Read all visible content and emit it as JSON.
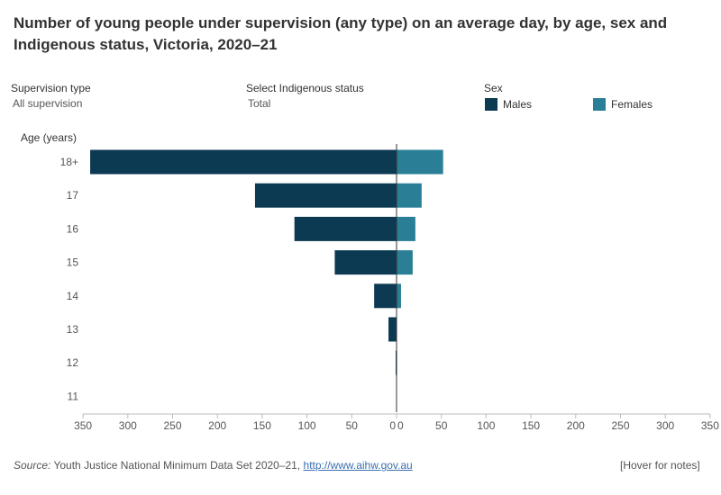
{
  "title": "Number of young people under supervision (any type) on an average day, by age, sex and Indigenous status, Victoria, 2020–21",
  "filters": {
    "supervision_type": {
      "label": "Supervision type",
      "value": "All supervision"
    },
    "indigenous_status": {
      "label": "Select Indigenous status",
      "value": "Total"
    }
  },
  "legend": {
    "title": "Sex",
    "males": {
      "label": "Males",
      "color": "#0c3a52"
    },
    "females": {
      "label": "Females",
      "color": "#2a7f97"
    }
  },
  "footer": {
    "source_label": "Source:",
    "source_text": " Youth Justice National Minimum Data Set 2020–21, ",
    "source_link": "http://www.aihw.gov.au",
    "hover_notes": "[Hover for notes]"
  },
  "chart_data": {
    "type": "bar",
    "orientation": "horizontal-population-pyramid",
    "title": "Number of young people under supervision (any type) on an average day, by age, sex and Indigenous status, Victoria, 2020–21",
    "ylabel": "Age (years)",
    "categories": [
      "18+",
      "17",
      "16",
      "15",
      "14",
      "13",
      "12",
      "11"
    ],
    "series": [
      {
        "name": "Males",
        "values": [
          342,
          158,
          114,
          69,
          25,
          9,
          1,
          0
        ]
      },
      {
        "name": "Females",
        "values": [
          52,
          28,
          21,
          18,
          5,
          0,
          0,
          0
        ]
      }
    ],
    "x_ticks_left": [
      "350",
      "300",
      "250",
      "200",
      "150",
      "100",
      "50",
      "0"
    ],
    "x_ticks_right": [
      "0",
      "50",
      "100",
      "150",
      "200",
      "250",
      "300",
      "350"
    ],
    "xlim": [
      -350,
      350
    ]
  }
}
